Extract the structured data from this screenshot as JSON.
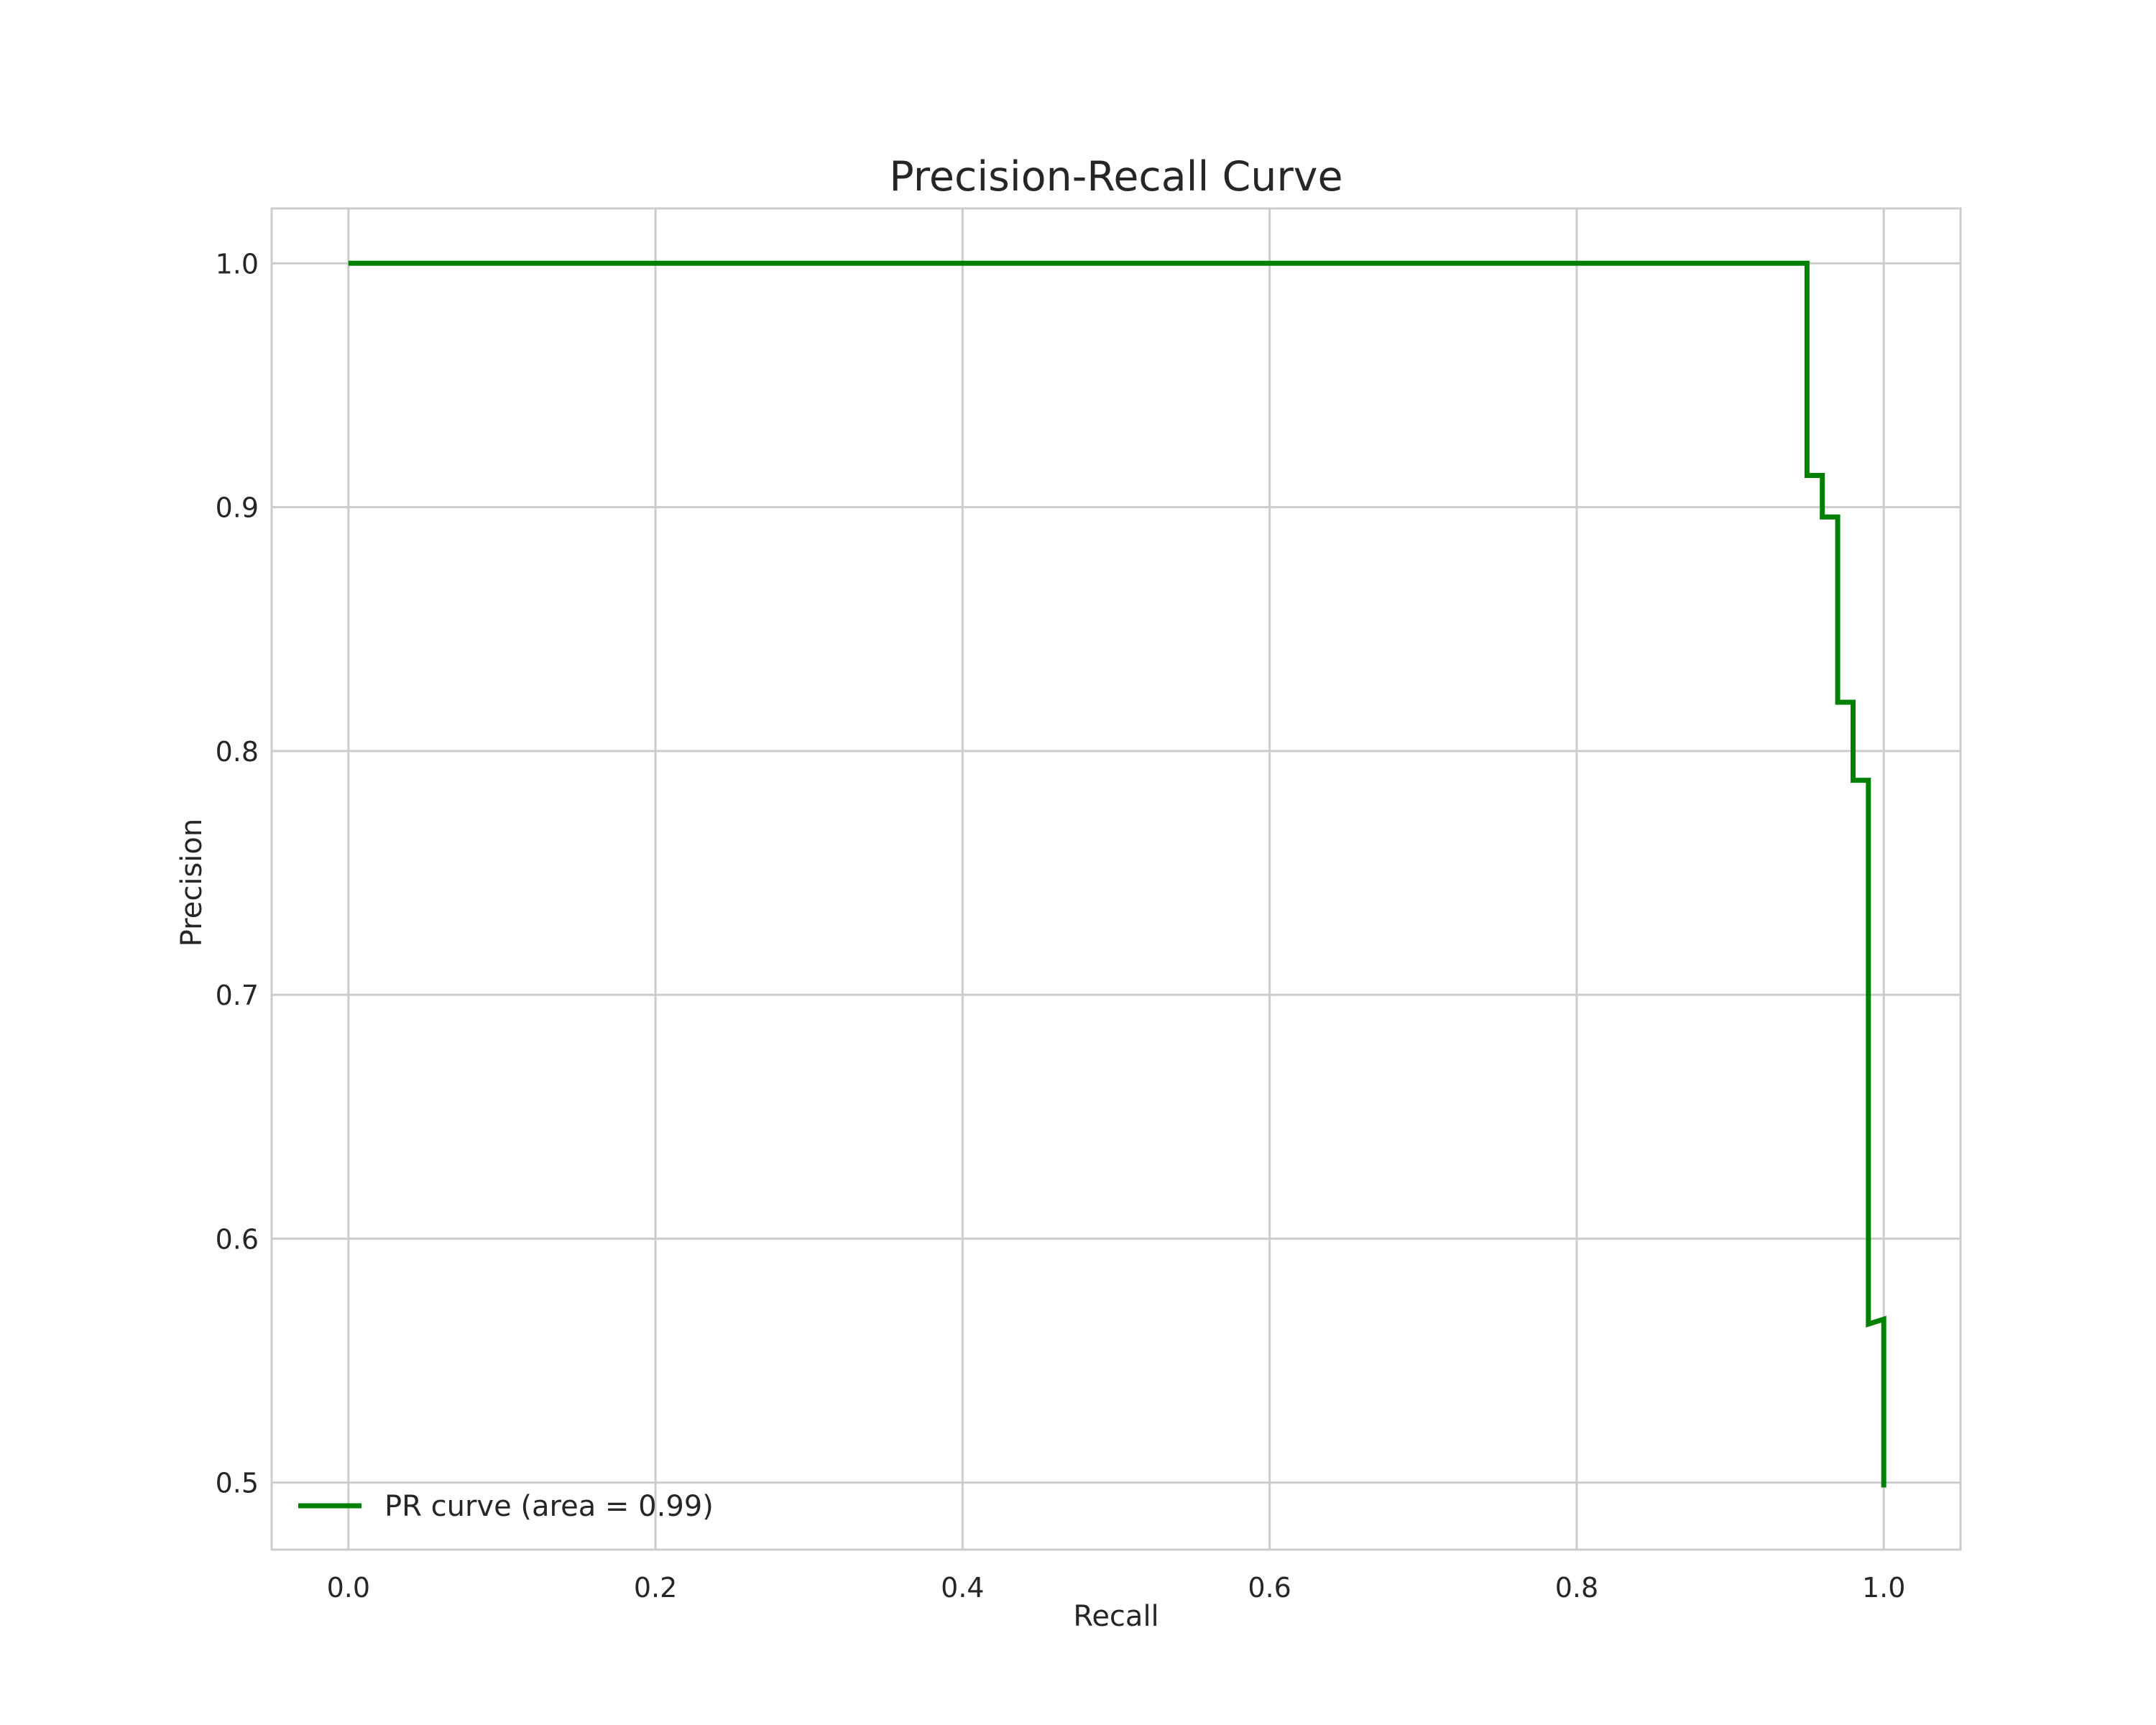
{
  "chart_data": {
    "type": "line",
    "title": "Precision-Recall Curve",
    "xlabel": "Recall",
    "ylabel": "Precision",
    "xlim": [
      -0.05,
      1.05
    ],
    "ylim": [
      0.4725,
      1.0225
    ],
    "x_ticks": [
      0.0,
      0.2,
      0.4,
      0.6,
      0.8,
      1.0
    ],
    "x_tick_labels": [
      "0.0",
      "0.2",
      "0.4",
      "0.6",
      "0.8",
      "1.0"
    ],
    "y_ticks": [
      0.5,
      0.6,
      0.7,
      0.8,
      0.9,
      1.0
    ],
    "y_tick_labels": [
      "0.5",
      "0.6",
      "0.7",
      "0.8",
      "0.9",
      "1.0"
    ],
    "grid": true,
    "legend_position": "lower-left",
    "series": [
      {
        "name": "PR curve (area = 0.99)",
        "color": "#008000",
        "x": [
          0.0,
          0.95,
          0.95,
          0.96,
          0.96,
          0.97,
          0.97,
          0.98,
          0.98,
          0.99,
          0.99,
          1.0,
          1.0
        ],
        "y": [
          1.0,
          1.0,
          0.913,
          0.913,
          0.896,
          0.896,
          0.82,
          0.82,
          0.788,
          0.788,
          0.565,
          0.567,
          0.498
        ]
      }
    ]
  },
  "colors": {
    "grid": "#cccccc",
    "frame": "#cccccc",
    "text": "#262626",
    "background": "#ffffff"
  }
}
